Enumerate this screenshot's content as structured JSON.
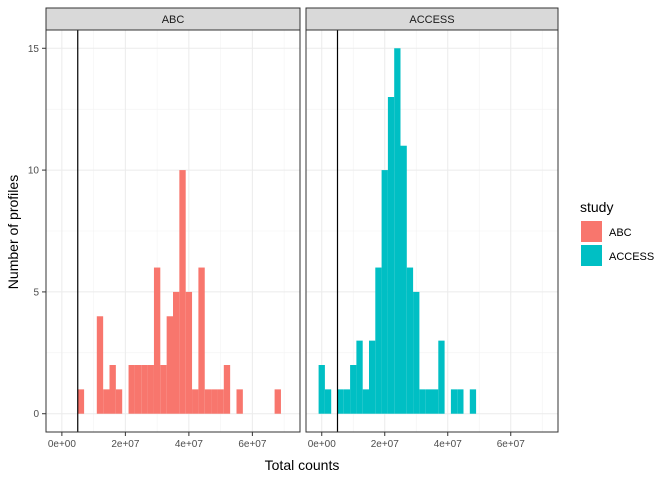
{
  "chart_data": {
    "type": "bar",
    "subtype": "faceted-histogram",
    "xlabel": "Total counts",
    "ylabel": "Number of profiles",
    "xlim": [
      -5000000,
      75000000
    ],
    "ylim": [
      -0.75,
      15.75
    ],
    "x_ticks": [
      0,
      20000000,
      40000000,
      60000000
    ],
    "x_tick_labels": [
      "0e+00",
      "2e+07",
      "4e+07",
      "6e+07"
    ],
    "y_ticks": [
      0,
      5,
      10,
      15
    ],
    "y_tick_labels": [
      "0",
      "5",
      "10",
      "15"
    ],
    "grid": true,
    "bin_width": 2000000,
    "vline_x": 5000000,
    "legend": {
      "title": "study",
      "placement": "right",
      "entries": [
        {
          "label": "ABC",
          "color": "#f8766d"
        },
        {
          "label": "ACCESS",
          "color": "#00bfc4"
        }
      ]
    },
    "panels": [
      {
        "strip": "ABC",
        "color": "#f8766d",
        "bins": [
          {
            "x0": 5000000,
            "count": 1
          },
          {
            "x0": 11000000,
            "count": 4
          },
          {
            "x0": 13000000,
            "count": 1
          },
          {
            "x0": 15000000,
            "count": 2
          },
          {
            "x0": 17000000,
            "count": 1
          },
          {
            "x0": 21000000,
            "count": 2
          },
          {
            "x0": 23000000,
            "count": 2
          },
          {
            "x0": 25000000,
            "count": 2
          },
          {
            "x0": 27000000,
            "count": 2
          },
          {
            "x0": 29000000,
            "count": 6
          },
          {
            "x0": 31000000,
            "count": 2
          },
          {
            "x0": 33000000,
            "count": 4
          },
          {
            "x0": 35000000,
            "count": 5
          },
          {
            "x0": 37000000,
            "count": 10
          },
          {
            "x0": 39000000,
            "count": 5
          },
          {
            "x0": 41000000,
            "count": 1
          },
          {
            "x0": 43000000,
            "count": 6
          },
          {
            "x0": 45000000,
            "count": 1
          },
          {
            "x0": 47000000,
            "count": 1
          },
          {
            "x0": 49000000,
            "count": 1
          },
          {
            "x0": 51000000,
            "count": 2
          },
          {
            "x0": 55000000,
            "count": 1
          },
          {
            "x0": 67000000,
            "count": 1
          }
        ]
      },
      {
        "strip": "ACCESS",
        "color": "#00bfc4",
        "bins": [
          {
            "x0": -1000000,
            "count": 2
          },
          {
            "x0": 1000000,
            "count": 1
          },
          {
            "x0": 5000000,
            "count": 1
          },
          {
            "x0": 7000000,
            "count": 1
          },
          {
            "x0": 9000000,
            "count": 2
          },
          {
            "x0": 11000000,
            "count": 3
          },
          {
            "x0": 13000000,
            "count": 1
          },
          {
            "x0": 15000000,
            "count": 3
          },
          {
            "x0": 17000000,
            "count": 6
          },
          {
            "x0": 19000000,
            "count": 10
          },
          {
            "x0": 21000000,
            "count": 13
          },
          {
            "x0": 23000000,
            "count": 15
          },
          {
            "x0": 25000000,
            "count": 11
          },
          {
            "x0": 27000000,
            "count": 6
          },
          {
            "x0": 29000000,
            "count": 5
          },
          {
            "x0": 31000000,
            "count": 1
          },
          {
            "x0": 33000000,
            "count": 1
          },
          {
            "x0": 35000000,
            "count": 1
          },
          {
            "x0": 37000000,
            "count": 3
          },
          {
            "x0": 41000000,
            "count": 1
          },
          {
            "x0": 43000000,
            "count": 1
          },
          {
            "x0": 47000000,
            "count": 1
          }
        ]
      }
    ]
  }
}
